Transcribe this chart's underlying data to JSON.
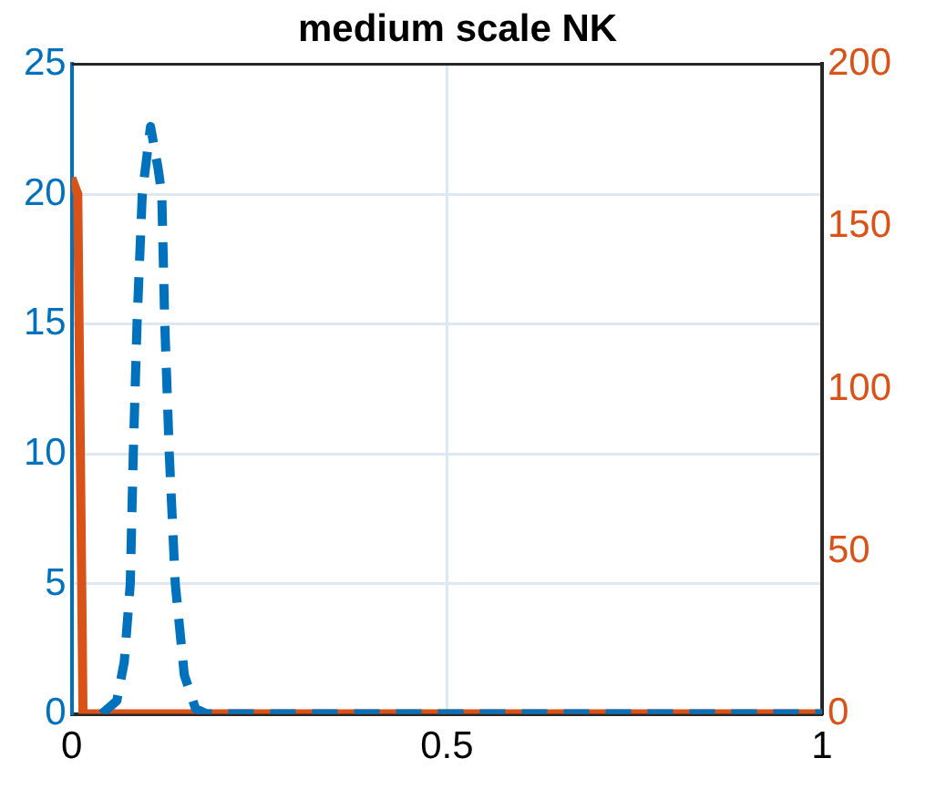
{
  "chart_data": {
    "type": "line",
    "title": "medium scale NK",
    "xlim": [
      0,
      1
    ],
    "xticks": [
      0,
      0.5,
      1
    ],
    "ylim": [
      0,
      25
    ],
    "yticks": [
      0,
      5,
      10,
      15,
      20,
      25
    ],
    "y2lim": [
      0,
      200
    ],
    "y2ticks": [
      0,
      50,
      100,
      150,
      200
    ],
    "grid": true,
    "legend": false,
    "series": [
      {
        "color": "#0072bd",
        "line_style": "dashed",
        "x": [
          0.04,
          0.06,
          0.07,
          0.078,
          0.082,
          0.087,
          0.094,
          0.105,
          0.115,
          0.12,
          0.124,
          0.13,
          0.138,
          0.15,
          0.165,
          0.18,
          1
        ],
        "values": [
          0,
          0.5,
          2,
          5,
          10,
          15,
          20,
          22.6,
          21,
          20,
          15,
          10,
          5,
          1.5,
          0.2,
          0,
          0
        ]
      },
      {
        "color": "#d95319",
        "line_style": "solid",
        "axis": "y2",
        "x": [
          0,
          0.008,
          0.015,
          1
        ],
        "values": [
          165,
          160,
          0,
          0
        ]
      }
    ]
  }
}
